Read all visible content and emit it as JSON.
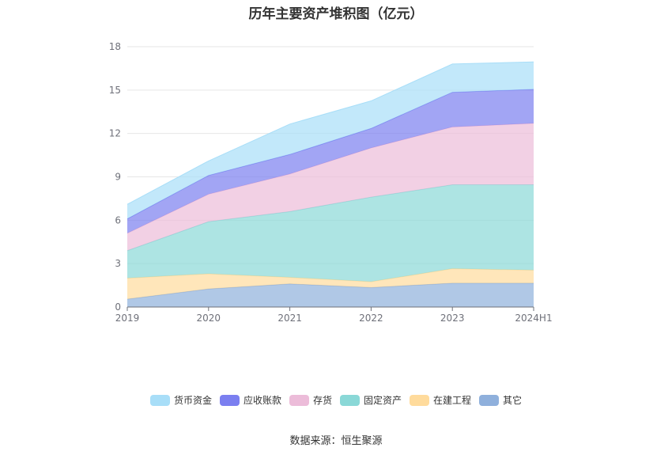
{
  "chart_data": {
    "type": "area",
    "stacked": true,
    "title": "历年主要资产堆积图（亿元）",
    "x": [
      "2019",
      "2020",
      "2021",
      "2022",
      "2023",
      "2024H1"
    ],
    "ylim": [
      0,
      18
    ],
    "yticks": [
      0,
      3,
      6,
      9,
      12,
      15,
      18
    ],
    "grid": true,
    "legend_position": "bottom",
    "series": [
      {
        "name": "其它",
        "color": "#8fb0dc",
        "values": [
          0.55,
          1.25,
          1.6,
          1.35,
          1.65,
          1.65
        ]
      },
      {
        "name": "在建工程",
        "color": "#ffdb9c",
        "values": [
          1.45,
          1.05,
          0.45,
          0.4,
          1.0,
          0.9
        ]
      },
      {
        "name": "固定资产",
        "color": "#8ad8d7",
        "values": [
          1.9,
          3.6,
          4.55,
          5.85,
          5.8,
          5.9
        ]
      },
      {
        "name": "存货",
        "color": "#ecbcd9",
        "values": [
          1.2,
          1.9,
          2.6,
          3.4,
          4.0,
          4.25
        ]
      },
      {
        "name": "应收账款",
        "color": "#7b7ff0",
        "values": [
          1.0,
          1.3,
          1.35,
          1.35,
          2.4,
          2.35
        ]
      },
      {
        "name": "货币资金",
        "color": "#a8def8",
        "values": [
          1.0,
          1.0,
          2.1,
          1.9,
          1.95,
          1.9
        ]
      }
    ],
    "legend_order": [
      "货币资金",
      "应收账款",
      "存货",
      "固定资产",
      "在建工程",
      "其它"
    ]
  },
  "source": "数据来源：恒生聚源"
}
